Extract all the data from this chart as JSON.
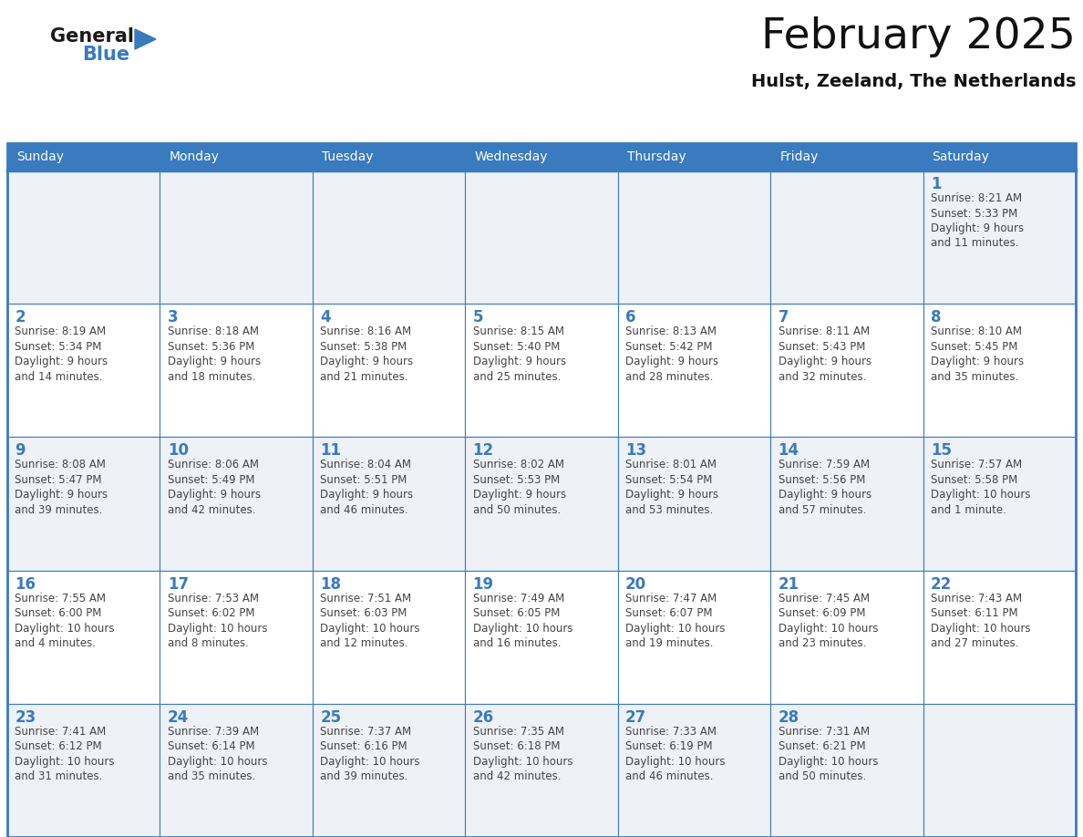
{
  "title": "February 2025",
  "subtitle": "Hulst, Zeeland, The Netherlands",
  "header_bg": "#3a7abf",
  "header_text": "#ffffff",
  "day_names": [
    "Sunday",
    "Monday",
    "Tuesday",
    "Wednesday",
    "Thursday",
    "Friday",
    "Saturday"
  ],
  "cell_bg_odd": "#eef2f7",
  "cell_bg_even": "#ffffff",
  "border_color": "#3a7abf",
  "date_color": "#3a7abf",
  "text_color": "#444444",
  "logo_general_color": "#1a1a1a",
  "logo_blue_color": "#3a7abf",
  "logo_triangle_color": "#3a7abf",
  "calendar": [
    [
      null,
      null,
      null,
      null,
      null,
      null,
      {
        "day": 1,
        "sunrise": "8:21 AM",
        "sunset": "5:33 PM",
        "daylight": "9 hours",
        "daylight2": "and 11 minutes."
      }
    ],
    [
      {
        "day": 2,
        "sunrise": "8:19 AM",
        "sunset": "5:34 PM",
        "daylight": "9 hours",
        "daylight2": "and 14 minutes."
      },
      {
        "day": 3,
        "sunrise": "8:18 AM",
        "sunset": "5:36 PM",
        "daylight": "9 hours",
        "daylight2": "and 18 minutes."
      },
      {
        "day": 4,
        "sunrise": "8:16 AM",
        "sunset": "5:38 PM",
        "daylight": "9 hours",
        "daylight2": "and 21 minutes."
      },
      {
        "day": 5,
        "sunrise": "8:15 AM",
        "sunset": "5:40 PM",
        "daylight": "9 hours",
        "daylight2": "and 25 minutes."
      },
      {
        "day": 6,
        "sunrise": "8:13 AM",
        "sunset": "5:42 PM",
        "daylight": "9 hours",
        "daylight2": "and 28 minutes."
      },
      {
        "day": 7,
        "sunrise": "8:11 AM",
        "sunset": "5:43 PM",
        "daylight": "9 hours",
        "daylight2": "and 32 minutes."
      },
      {
        "day": 8,
        "sunrise": "8:10 AM",
        "sunset": "5:45 PM",
        "daylight": "9 hours",
        "daylight2": "and 35 minutes."
      }
    ],
    [
      {
        "day": 9,
        "sunrise": "8:08 AM",
        "sunset": "5:47 PM",
        "daylight": "9 hours",
        "daylight2": "and 39 minutes."
      },
      {
        "day": 10,
        "sunrise": "8:06 AM",
        "sunset": "5:49 PM",
        "daylight": "9 hours",
        "daylight2": "and 42 minutes."
      },
      {
        "day": 11,
        "sunrise": "8:04 AM",
        "sunset": "5:51 PM",
        "daylight": "9 hours",
        "daylight2": "and 46 minutes."
      },
      {
        "day": 12,
        "sunrise": "8:02 AM",
        "sunset": "5:53 PM",
        "daylight": "9 hours",
        "daylight2": "and 50 minutes."
      },
      {
        "day": 13,
        "sunrise": "8:01 AM",
        "sunset": "5:54 PM",
        "daylight": "9 hours",
        "daylight2": "and 53 minutes."
      },
      {
        "day": 14,
        "sunrise": "7:59 AM",
        "sunset": "5:56 PM",
        "daylight": "9 hours",
        "daylight2": "and 57 minutes."
      },
      {
        "day": 15,
        "sunrise": "7:57 AM",
        "sunset": "5:58 PM",
        "daylight": "10 hours",
        "daylight2": "and 1 minute."
      }
    ],
    [
      {
        "day": 16,
        "sunrise": "7:55 AM",
        "sunset": "6:00 PM",
        "daylight": "10 hours",
        "daylight2": "and 4 minutes."
      },
      {
        "day": 17,
        "sunrise": "7:53 AM",
        "sunset": "6:02 PM",
        "daylight": "10 hours",
        "daylight2": "and 8 minutes."
      },
      {
        "day": 18,
        "sunrise": "7:51 AM",
        "sunset": "6:03 PM",
        "daylight": "10 hours",
        "daylight2": "and 12 minutes."
      },
      {
        "day": 19,
        "sunrise": "7:49 AM",
        "sunset": "6:05 PM",
        "daylight": "10 hours",
        "daylight2": "and 16 minutes."
      },
      {
        "day": 20,
        "sunrise": "7:47 AM",
        "sunset": "6:07 PM",
        "daylight": "10 hours",
        "daylight2": "and 19 minutes."
      },
      {
        "day": 21,
        "sunrise": "7:45 AM",
        "sunset": "6:09 PM",
        "daylight": "10 hours",
        "daylight2": "and 23 minutes."
      },
      {
        "day": 22,
        "sunrise": "7:43 AM",
        "sunset": "6:11 PM",
        "daylight": "10 hours",
        "daylight2": "and 27 minutes."
      }
    ],
    [
      {
        "day": 23,
        "sunrise": "7:41 AM",
        "sunset": "6:12 PM",
        "daylight": "10 hours",
        "daylight2": "and 31 minutes."
      },
      {
        "day": 24,
        "sunrise": "7:39 AM",
        "sunset": "6:14 PM",
        "daylight": "10 hours",
        "daylight2": "and 35 minutes."
      },
      {
        "day": 25,
        "sunrise": "7:37 AM",
        "sunset": "6:16 PM",
        "daylight": "10 hours",
        "daylight2": "and 39 minutes."
      },
      {
        "day": 26,
        "sunrise": "7:35 AM",
        "sunset": "6:18 PM",
        "daylight": "10 hours",
        "daylight2": "and 42 minutes."
      },
      {
        "day": 27,
        "sunrise": "7:33 AM",
        "sunset": "6:19 PM",
        "daylight": "10 hours",
        "daylight2": "and 46 minutes."
      },
      {
        "day": 28,
        "sunrise": "7:31 AM",
        "sunset": "6:21 PM",
        "daylight": "10 hours",
        "daylight2": "and 50 minutes."
      },
      null
    ]
  ]
}
